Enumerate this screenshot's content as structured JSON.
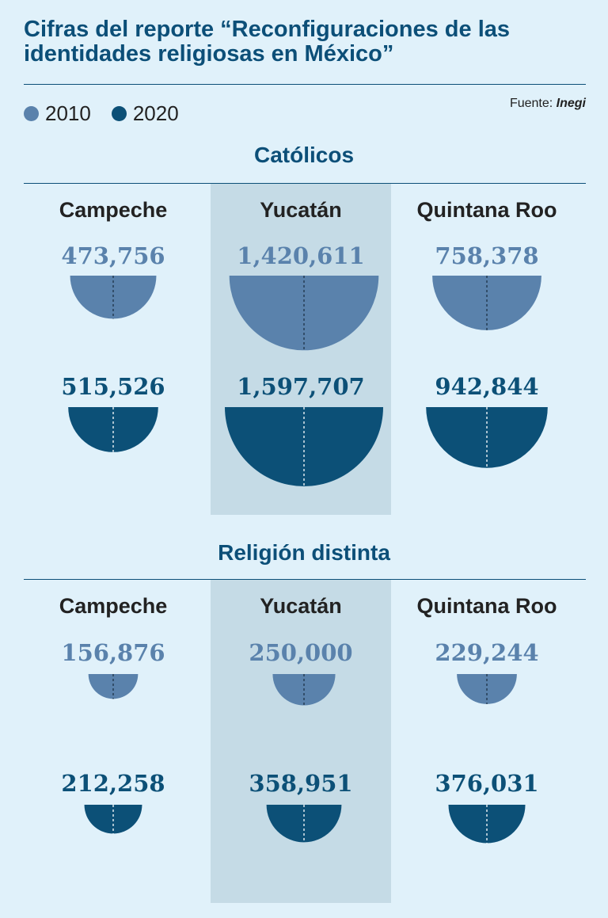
{
  "title": "Cifras del reporte “Reconfiguraciones de las identidades religiosas en México”",
  "legend": [
    {
      "label": "2010",
      "color": "#5a82ac"
    },
    {
      "label": "2020",
      "color": "#0c5077"
    }
  ],
  "source": {
    "prefix": "Fuente:",
    "name": "Inegi"
  },
  "chart_data": {
    "type": "semicircle-proportional",
    "sections": [
      {
        "title": "Católicos",
        "states": [
          "Campeche",
          "Yucatán",
          "Quintana Roo"
        ],
        "series": [
          {
            "name": "2010",
            "values": [
              473756,
              1420611,
              758378
            ],
            "labels": [
              "473,756",
              "1,420,611",
              "758,378"
            ]
          },
          {
            "name": "2020",
            "values": [
              515526,
              1597707,
              942844
            ],
            "labels": [
              "515,526",
              "1,597,707",
              "942,844"
            ]
          }
        ]
      },
      {
        "title": "Religión distinta",
        "states": [
          "Campeche",
          "Yucatán",
          "Quintana Roo"
        ],
        "series": [
          {
            "name": "2010",
            "values": [
              156876,
              250000,
              229244
            ],
            "labels": [
              "156,876",
              "250,000",
              "229,244"
            ]
          },
          {
            "name": "2020",
            "values": [
              212258,
              358951,
              376031
            ],
            "labels": [
              "212,258",
              "358,951",
              "376,031"
            ]
          }
        ]
      }
    ],
    "highlighted_state": "Yucatán"
  }
}
